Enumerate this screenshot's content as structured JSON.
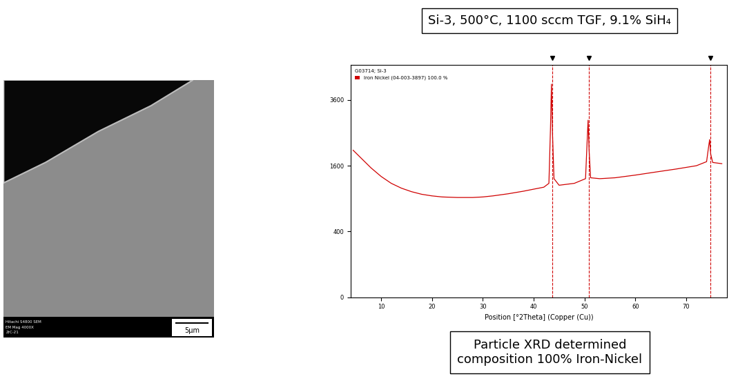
{
  "title_box": "Si-3, 500°C, 1100 sccm TGF, 9.1% SiH₄",
  "sem_image": {
    "info": [
      "Hitachi S4800 SEM",
      "EM Mag 4000X",
      "ZrC-21"
    ],
    "scale_bar": "5μm"
  },
  "chart_data": {
    "type": "line",
    "annotations": [
      "G03714; Si-3"
    ],
    "x_label": "Position [°2Theta] (Copper (Cu))",
    "series": [
      {
        "name": "Iron Nickel (04-003-3897) 100.0 %",
        "color": "#d00000",
        "x": [
          4.5,
          6,
          8,
          10,
          12,
          14,
          16,
          18,
          20,
          22,
          25,
          28,
          30,
          32,
          35,
          38,
          40,
          42,
          43.0,
          43.3,
          43.5,
          43.7,
          44.0,
          45,
          48,
          50.2,
          50.5,
          50.7,
          50.9,
          51.2,
          53,
          56,
          60,
          64,
          68,
          72,
          74.0,
          74.4,
          74.6,
          74.8,
          75.2,
          77
        ],
        "values": [
          2000,
          1800,
          1550,
          1350,
          1200,
          1100,
          1030,
          980,
          950,
          930,
          920,
          920,
          930,
          950,
          990,
          1040,
          1080,
          1120,
          1200,
          2600,
          4200,
          2500,
          1300,
          1160,
          1200,
          1300,
          2200,
          2900,
          2000,
          1320,
          1300,
          1320,
          1380,
          1450,
          1520,
          1600,
          1700,
          2100,
          2300,
          1900,
          1680,
          1650
        ]
      }
    ],
    "reference_peaks": [
      43.6,
      50.8,
      74.7
    ],
    "xlim": [
      4,
      78
    ],
    "xticks": [
      10,
      20,
      30,
      40,
      50,
      60,
      70
    ],
    "ylim": [
      0,
      5000
    ],
    "yticks": [
      0,
      400,
      1600,
      3600
    ],
    "legend": "upper left"
  },
  "caption_box": [
    "Particle XRD determined",
    "composition 100% Iron-Nickel"
  ]
}
